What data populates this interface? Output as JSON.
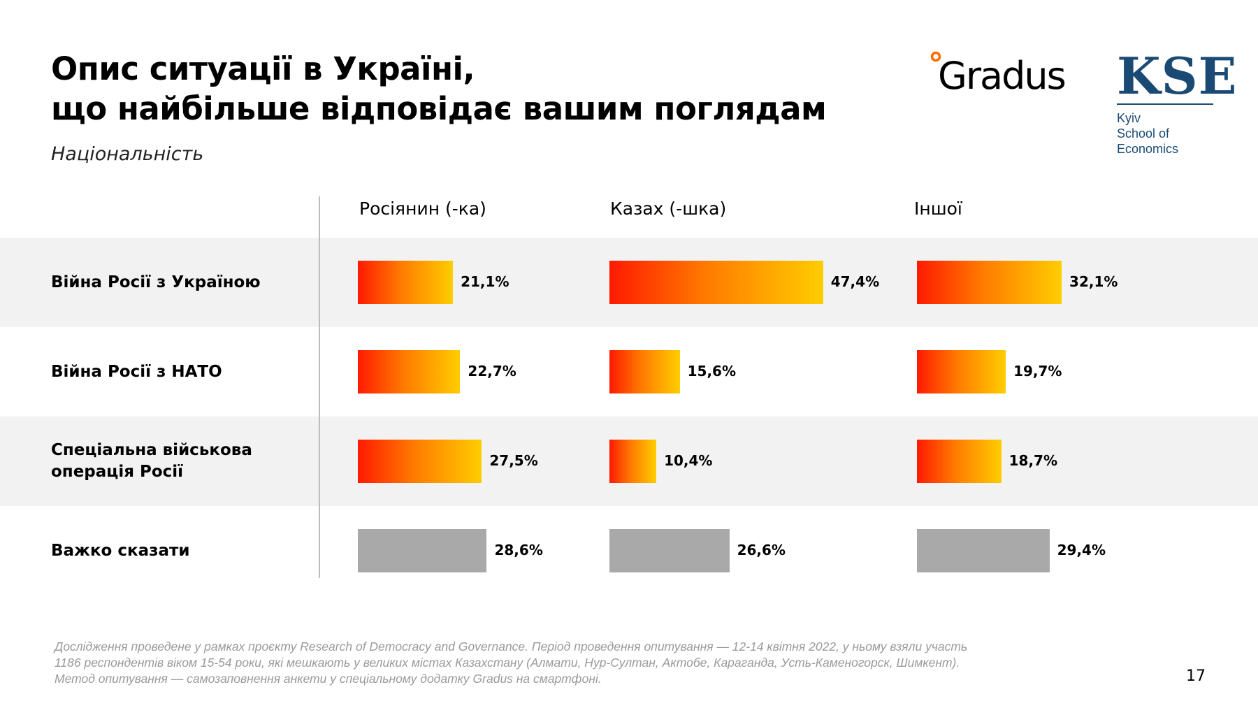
{
  "title_line1": "Опис ситуації в Україні,",
  "title_line2": "що найбільше відповідає вашим поглядам",
  "subtitle": "Національність",
  "logos": {
    "gradus": "Gradus",
    "kse_mark": "KSE",
    "kse_line1": "Kyiv",
    "kse_line2": "School of",
    "kse_line3": "Economics"
  },
  "colors": {
    "gradient_start": "#ff1a00",
    "gradient_end": "#ffcd00",
    "neutral_bar": "#a9a9a9",
    "row_shade": "#f2f2f2",
    "kse_blue": "#1a4a73"
  },
  "chart_data": {
    "type": "bar",
    "orientation": "horizontal",
    "groups": [
      "Росіянин (-ка)",
      "Казах (-шка)",
      "Іншої"
    ],
    "categories": [
      "Війна Росії з Україною",
      "Війна Росії з НАТО",
      "Спеціальна військова операція Росії",
      "Важко сказати"
    ],
    "series": [
      {
        "name": "Росіянин (-ка)",
        "values": [
          21.1,
          22.7,
          27.5,
          28.6
        ],
        "labels": [
          "21,1%",
          "22,7%",
          "27,5%",
          "28,6%"
        ]
      },
      {
        "name": "Казах (-шка)",
        "values": [
          47.4,
          15.6,
          10.4,
          26.6
        ],
        "labels": [
          "47,4%",
          "15,6%",
          "10,4%",
          "26,6%"
        ]
      },
      {
        "name": "Іншої",
        "values": [
          32.1,
          19.7,
          18.7,
          29.4
        ],
        "labels": [
          "32,1%",
          "19,7%",
          "18,7%",
          "29,4%"
        ]
      }
    ],
    "grey_category": "Важко сказати",
    "unit": "%",
    "grid": false
  },
  "footnote": "Дослідження проведене у рамках проєкту Research of Democracy and Governance. Період проведення опитування — 12-14 квітня 2022, у ньому взяли участь 1186 респондентів віком 15-54 роки, які мешкають у великих містах Казахстану (Алмати, Нур-Султан, Актобе, Караганда, Усть-Каменогорск, Шимкент). Метод опитування — самозаповнення анкети у спеціальному додатку Gradus на смартфоні.",
  "page_number": "17"
}
